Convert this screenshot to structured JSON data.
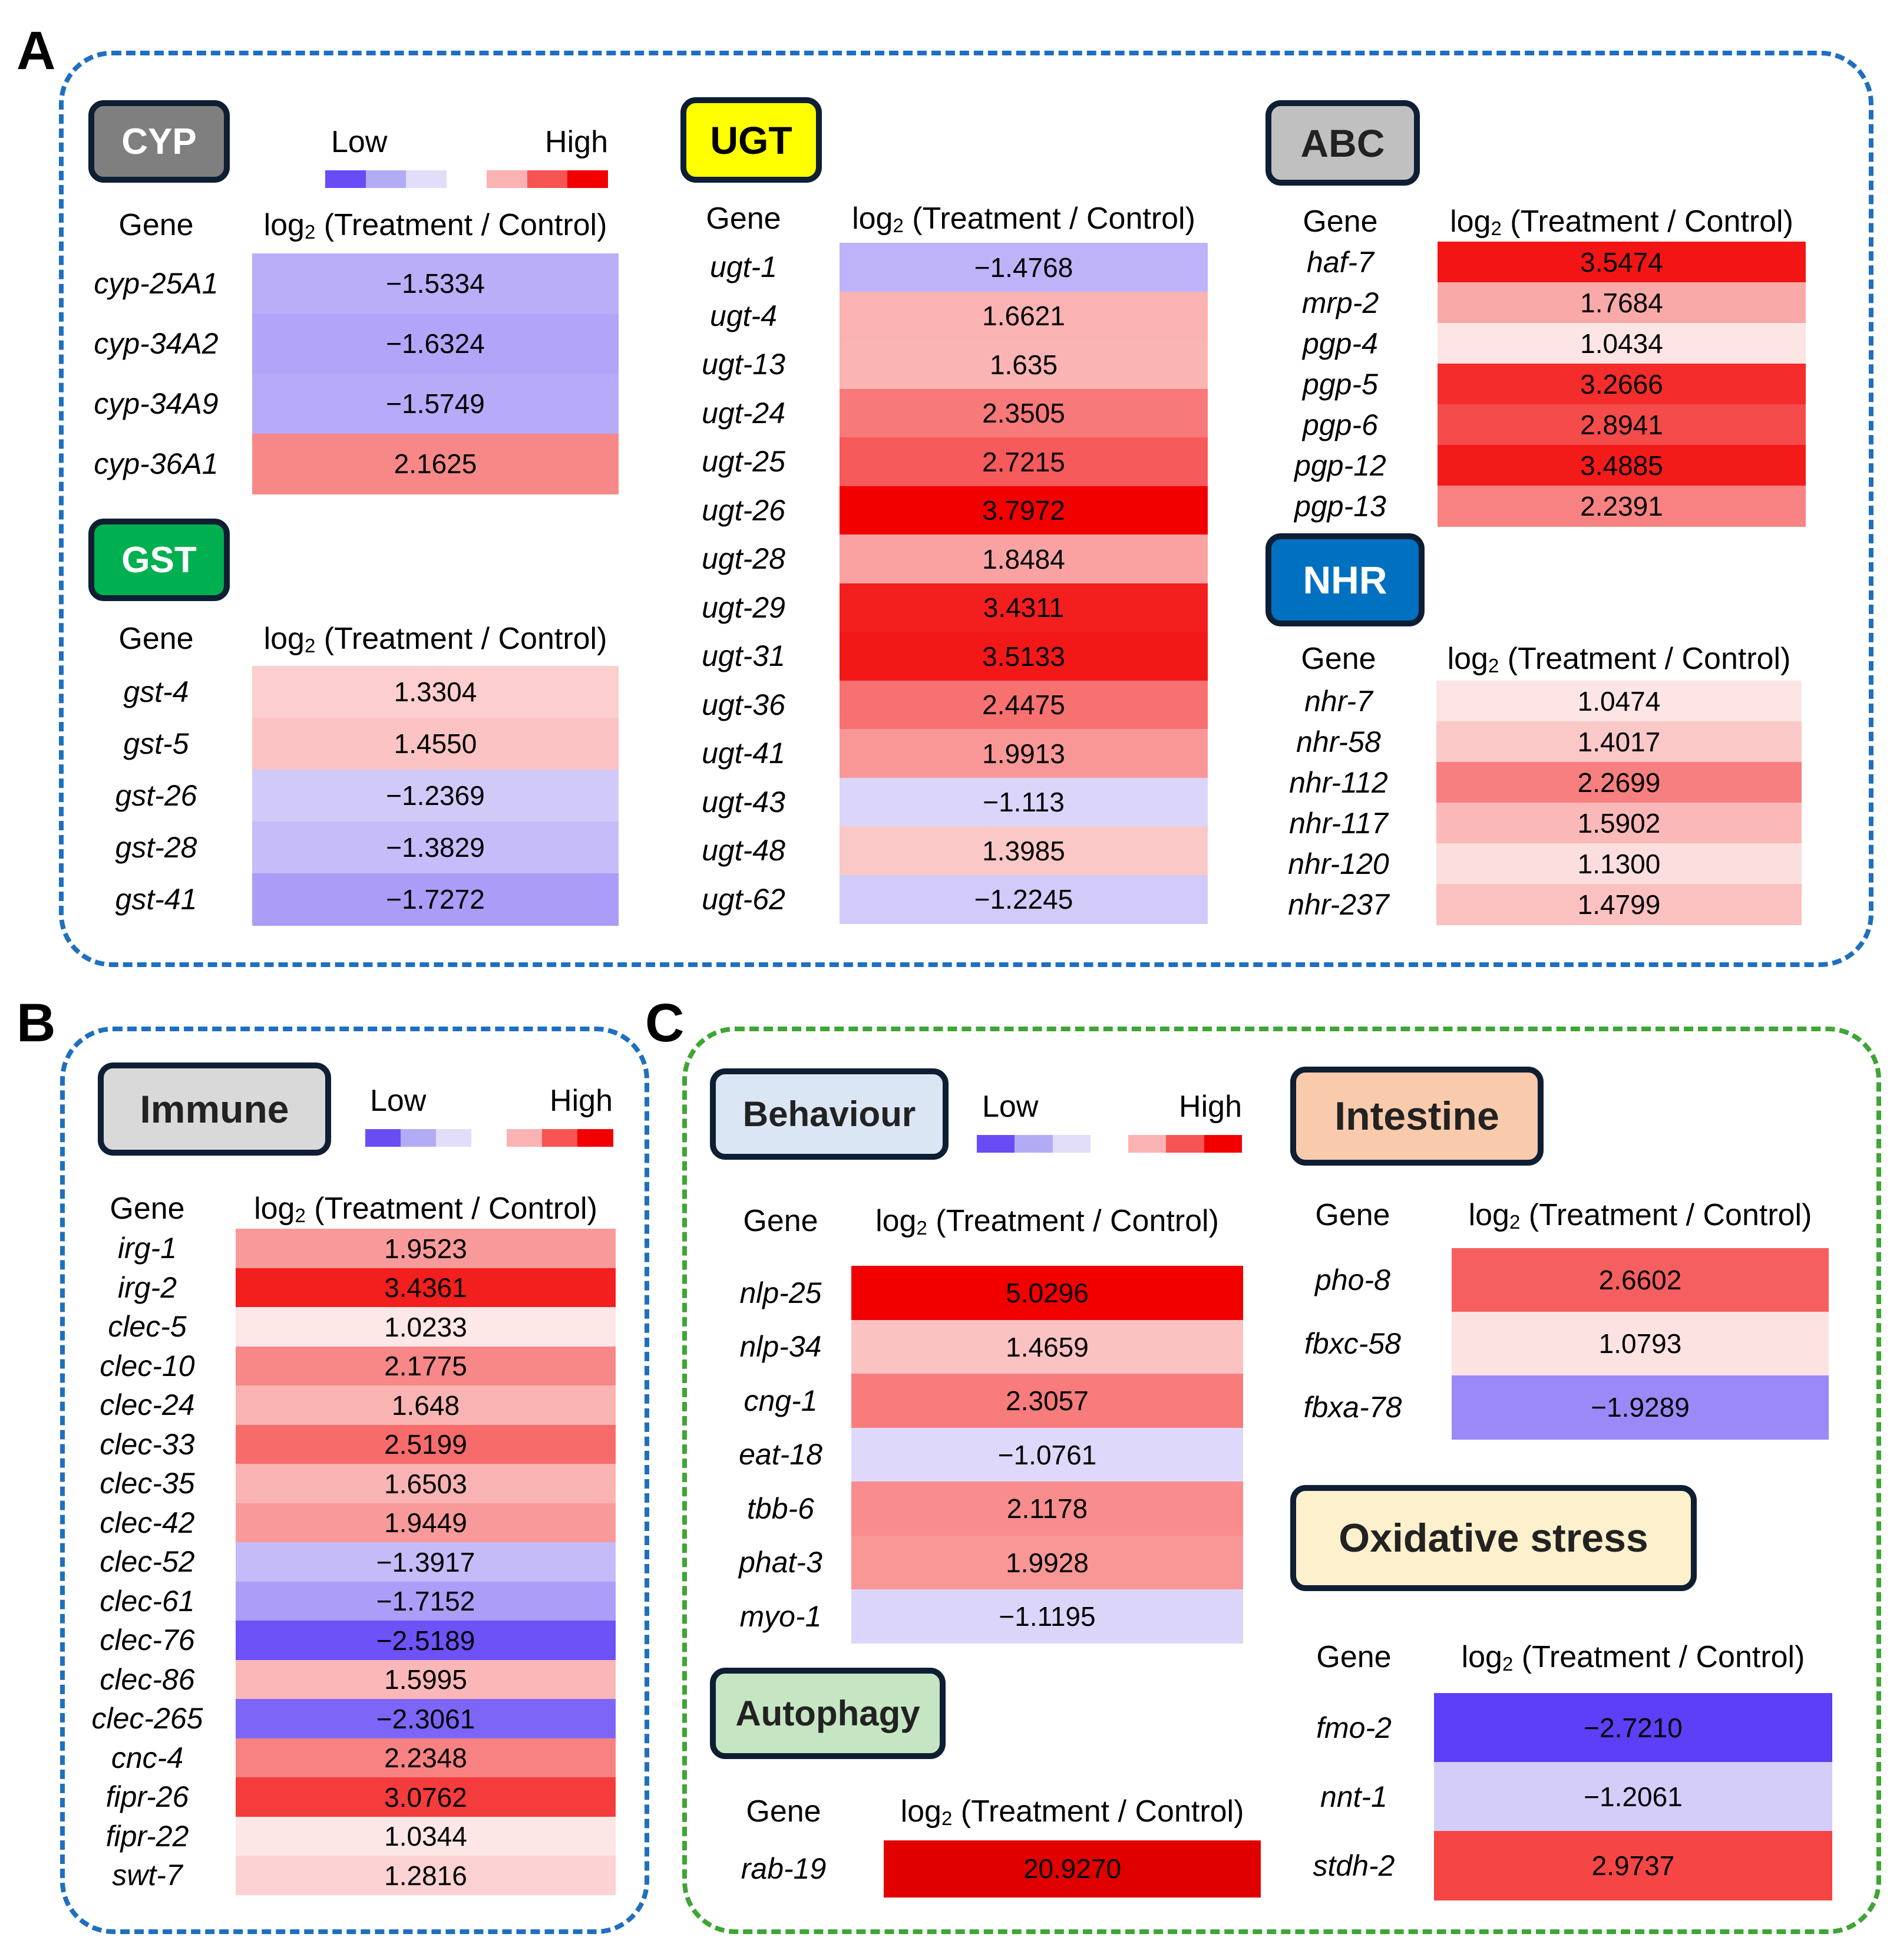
{
  "panels": [
    {
      "letter": "A",
      "frame_color": "#1f6fbf"
    },
    {
      "letter": "B",
      "frame_color": "#1f6fbf"
    },
    {
      "letter": "C",
      "frame_color": "#3fa535"
    }
  ],
  "legend": {
    "low": "Low",
    "high": "High",
    "colors": [
      "#6a4cf5",
      "#b3acf5",
      "#e2ddf8",
      "#ffffff",
      "#fbb2b2",
      "#f75454",
      "#f20000"
    ]
  },
  "table_header": {
    "gene": "Gene",
    "value_prefix": "log",
    "value_sub": "2",
    "value_suffix": " (Treatment / Control)"
  },
  "chart_data": [
    {
      "type": "heatmap",
      "title": "CYP",
      "badge_color": "#7f7f7f",
      "badge_text_color": "#ffffff",
      "genes": [
        "cyp-25A1",
        "cyp-34A2",
        "cyp-34A9",
        "cyp-36A1"
      ],
      "values": [
        -1.5334,
        -1.6324,
        -1.5749,
        2.1625
      ],
      "labels": [
        "−1.5334",
        "−1.6324",
        "−1.5749",
        "2.1625"
      ]
    },
    {
      "type": "heatmap",
      "title": "GST",
      "badge_color": "#00b050",
      "badge_text_color": "#ffffff",
      "genes": [
        "gst-4",
        "gst-5",
        "gst-26",
        "gst-28",
        "gst-41"
      ],
      "values": [
        1.3304,
        1.455,
        -1.2369,
        -1.3829,
        -1.7272
      ],
      "labels": [
        "1.3304",
        "1.4550",
        "−1.2369",
        "−1.3829",
        "−1.7272"
      ]
    },
    {
      "type": "heatmap",
      "title": "UGT",
      "badge_color": "#ffff00",
      "badge_text_color": "#000000",
      "genes": [
        "ugt-1",
        "ugt-4",
        "ugt-13",
        "ugt-24",
        "ugt-25",
        "ugt-26",
        "ugt-28",
        "ugt-29",
        "ugt-31",
        "ugt-36",
        "ugt-41",
        "ugt-43",
        "ugt-48",
        "ugt-62"
      ],
      "values": [
        -1.4768,
        1.6621,
        1.635,
        2.3505,
        2.7215,
        3.7972,
        1.8484,
        3.4311,
        3.5133,
        2.4475,
        1.9913,
        -1.113,
        1.3985,
        -1.2245
      ],
      "labels": [
        "−1.4768",
        "1.6621",
        "1.635",
        "2.3505",
        "2.7215",
        "3.7972",
        "1.8484",
        "3.4311",
        "3.5133",
        "2.4475",
        "1.9913",
        "−1.113",
        "1.3985",
        "−1.2245"
      ]
    },
    {
      "type": "heatmap",
      "title": "ABC",
      "badge_color": "#c0c0c0",
      "badge_text_color": "#222222",
      "genes": [
        "haf-7",
        "mrp-2",
        "pgp-4",
        "pgp-5",
        "pgp-6",
        "pgp-12",
        "pgp-13"
      ],
      "values": [
        3.5474,
        1.7684,
        1.0434,
        3.2666,
        2.8941,
        3.4885,
        2.2391
      ],
      "labels": [
        "3.5474",
        "1.7684",
        "1.0434",
        "3.2666",
        "2.8941",
        "3.4885",
        "2.2391"
      ]
    },
    {
      "type": "heatmap",
      "title": "NHR",
      "badge_color": "#0070c0",
      "badge_text_color": "#ffffff",
      "genes": [
        "nhr-7",
        "nhr-58",
        "nhr-112",
        "nhr-117",
        "nhr-120",
        "nhr-237"
      ],
      "values": [
        1.0474,
        1.4017,
        2.2699,
        1.5902,
        1.13,
        1.4799
      ],
      "labels": [
        "1.0474",
        "1.4017",
        "2.2699",
        "1.5902",
        "1.1300",
        "1.4799"
      ]
    },
    {
      "type": "heatmap",
      "title": "Immune",
      "badge_color": "#d9d9d9",
      "badge_text_color": "#222222",
      "genes": [
        "irg-1",
        "irg-2",
        "clec-5",
        "clec-10",
        "clec-24",
        "clec-33",
        "clec-35",
        "clec-42",
        "clec-52",
        "clec-61",
        "clec-76",
        "clec-86",
        "clec-265",
        "cnc-4",
        "fipr-26",
        "fipr-22",
        "swt-7"
      ],
      "values": [
        1.9523,
        3.4361,
        1.0233,
        2.1775,
        1.648,
        2.5199,
        1.6503,
        1.9449,
        -1.3917,
        -1.7152,
        -2.5189,
        1.5995,
        -2.3061,
        2.2348,
        3.0762,
        1.0344,
        1.2816
      ],
      "labels": [
        "1.9523",
        "3.4361",
        "1.0233",
        "2.1775",
        "1.648",
        "2.5199",
        "1.6503",
        "1.9449",
        "−1.3917",
        "−1.7152",
        "−2.5189",
        "1.5995",
        "−2.3061",
        "2.2348",
        "3.0762",
        "1.0344",
        "1.2816"
      ]
    },
    {
      "type": "heatmap",
      "title": "Behaviour",
      "badge_color": "#dbe6f4",
      "badge_text_color": "#222222",
      "genes": [
        "nlp-25",
        "nlp-34",
        "cng-1",
        "eat-18",
        "tbb-6",
        "phat-3",
        "myo-1"
      ],
      "values": [
        5.0296,
        1.4659,
        2.3057,
        -1.0761,
        2.1178,
        1.9928,
        -1.1195
      ],
      "labels": [
        "5.0296",
        "1.4659",
        "2.3057",
        "−1.0761",
        "2.1178",
        "1.9928",
        "−1.1195"
      ]
    },
    {
      "type": "heatmap",
      "title": "Autophagy",
      "badge_color": "#c6e6c3",
      "badge_text_color": "#222222",
      "genes": [
        "rab-19"
      ],
      "values": [
        20.927
      ],
      "labels": [
        "20.9270"
      ]
    },
    {
      "type": "heatmap",
      "title": "Intestine",
      "badge_color": "#f9cbac",
      "badge_text_color": "#222222",
      "genes": [
        "pho-8",
        "fbxc-58",
        "fbxa-78"
      ],
      "values": [
        2.6602,
        1.0793,
        -1.9289
      ],
      "labels": [
        "2.6602",
        "1.0793",
        "−1.9289"
      ]
    },
    {
      "type": "heatmap",
      "title": "Oxidative stress",
      "badge_color": "#fdf0cc",
      "badge_text_color": "#222222",
      "genes": [
        "fmo-2",
        "nnt-1",
        "stdh-2"
      ],
      "values": [
        -2.721,
        -1.2061,
        2.9737
      ],
      "labels": [
        "−2.7210",
        "−1.2061",
        "2.9737"
      ]
    }
  ]
}
